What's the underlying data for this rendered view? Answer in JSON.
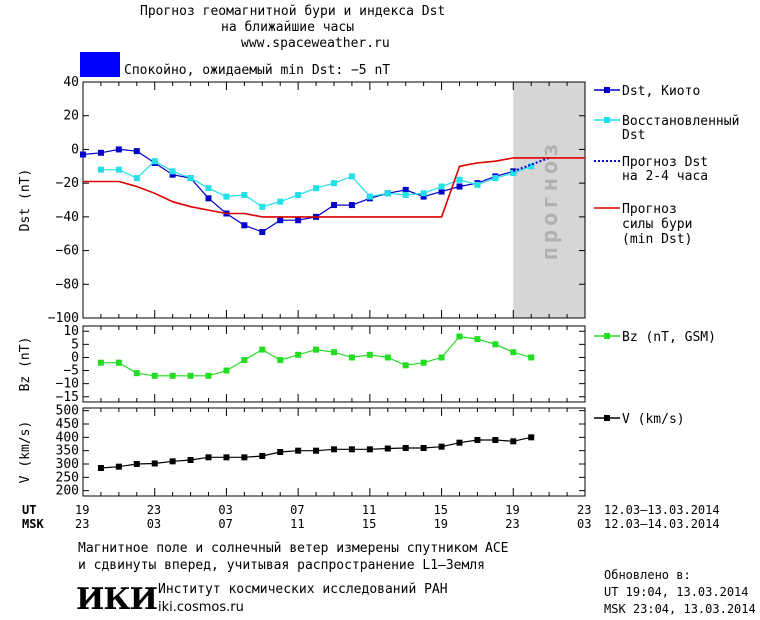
{
  "header": {
    "title_line1": "Прогноз геомагнитной бури и индекса Dst",
    "title_line2": "на ближайшие часы",
    "website": "www.spaceweather.ru",
    "status_color": "#0000ff",
    "status_text": "Спокойно, ожидаемый min Dst: −5 nT"
  },
  "forecast_band_label": "прогноз",
  "legend": {
    "dst_kyoto": "Dst, Киото",
    "restored_line1": "Восстановленный",
    "restored_line2": "Dst",
    "forecast_dst_line1": "Прогноз Dst",
    "forecast_dst_line2": "на 2-4 часа",
    "storm_line1": "Прогноз",
    "storm_line2": "силы бури",
    "storm_line3": "(min Dst)",
    "bz": "Bz (nT, GSM)",
    "v": "V (km/s)"
  },
  "time_axis": {
    "ut_label": "UT",
    "msk_label": "MSK",
    "ut_ticks": [
      "19",
      "23",
      "03",
      "07",
      "11",
      "15",
      "19",
      "23"
    ],
    "msk_ticks": [
      "23",
      "03",
      "07",
      "11",
      "15",
      "19",
      "23",
      "03"
    ],
    "ut_range": "12.03–13.03.2014",
    "msk_range": "12.03–14.03.2014"
  },
  "footer": {
    "note_line1": "Магнитное поле и солнечный ветер измерены спутником ACE",
    "note_line2": "и сдвинуты вперед, учитывая распространение L1–Земля",
    "logo_text": "ИКИ",
    "institute": "Институт космических исследований РАН",
    "institute_site": "iki.cosmos.ru",
    "updated_label": "Обновлено в:",
    "updated_ut": "UT  19:04, 13.03.2014",
    "updated_msk": "MSK 23:04, 13.03.2014"
  },
  "chart_data": [
    {
      "type": "line",
      "ylabel": "Dst (nT)",
      "ylim": [
        -100,
        40
      ],
      "yticks": [
        40,
        20,
        0,
        -20,
        -40,
        -60,
        -80,
        -100
      ],
      "x_hours_range": [
        0,
        28
      ],
      "forecast_region_hours": [
        24,
        28
      ],
      "series": [
        {
          "name": "Dst, Киото",
          "color": "#0000cc",
          "marker": "square",
          "x": [
            0,
            1,
            2,
            3,
            4,
            5,
            6,
            7,
            8,
            9,
            10,
            11,
            12,
            13,
            14,
            15,
            16,
            17,
            18,
            19,
            20,
            21,
            22,
            23,
            24
          ],
          "values": [
            -3,
            -2,
            0,
            -1,
            -8,
            -15,
            -17,
            -29,
            -38,
            -45,
            -49,
            -42,
            -42,
            -40,
            -33,
            -33,
            -29,
            -26,
            -24,
            -28,
            -25,
            -22,
            -20,
            -16,
            -13
          ]
        },
        {
          "name": "Восстановленный Dst",
          "color": "#22e0e8",
          "marker": "square",
          "x": [
            1,
            2,
            3,
            4,
            5,
            6,
            7,
            8,
            9,
            10,
            11,
            12,
            13,
            14,
            15,
            16,
            17,
            18,
            19,
            20,
            21,
            22,
            23,
            24,
            25
          ],
          "values": [
            -12,
            -12,
            -17,
            -7,
            -13,
            -17,
            -23,
            -28,
            -27,
            -34,
            -31,
            -27,
            -23,
            -20,
            -16,
            -28,
            -26,
            -27,
            -26,
            -22,
            -18,
            -21,
            -17,
            -14,
            -10
          ]
        },
        {
          "name": "Прогноз Dst на 2-4 часа",
          "color": "#0000cc",
          "style": "dotted",
          "x": [
            24,
            25,
            26
          ],
          "values": [
            -13,
            -9,
            -5
          ]
        },
        {
          "name": "Прогноз силы бури (min Dst)",
          "color": "#dd0000",
          "x": [
            0,
            1,
            2,
            3,
            4,
            5,
            6,
            7,
            8,
            9,
            10,
            11,
            12,
            13,
            14,
            15,
            16,
            17,
            18,
            19,
            20,
            21,
            22,
            23,
            24,
            25,
            26,
            27,
            28
          ],
          "values": [
            -19,
            -19,
            -19,
            -22,
            -26,
            -31,
            -34,
            -36,
            -38,
            -38,
            -40,
            -40,
            -40,
            -40,
            -40,
            -40,
            -40,
            -40,
            -40,
            -40,
            -40,
            -10,
            -8,
            -7,
            -5,
            -5,
            -5,
            -5,
            -5
          ]
        }
      ]
    },
    {
      "type": "line",
      "ylabel": "Bz (nT)",
      "ylim": [
        -17,
        12
      ],
      "yticks": [
        10,
        5,
        0,
        -5,
        -10,
        -15
      ],
      "series": [
        {
          "name": "Bz (nT, GSM)",
          "color": "#22dd22",
          "marker": "square",
          "x": [
            1,
            2,
            3,
            4,
            5,
            6,
            7,
            8,
            9,
            10,
            11,
            12,
            13,
            14,
            15,
            16,
            17,
            18,
            19,
            20,
            21,
            22,
            23,
            24,
            25
          ],
          "values": [
            -2,
            -2,
            -6,
            -7,
            -7,
            -7,
            -7,
            -5,
            -1,
            3,
            -1,
            1,
            3,
            2,
            0,
            1,
            0,
            -3,
            -2,
            0,
            8,
            7,
            5,
            2,
            0
          ]
        }
      ]
    },
    {
      "type": "line",
      "ylabel": "V (km/s)",
      "ylim": [
        180,
        510
      ],
      "yticks": [
        500,
        450,
        400,
        350,
        300,
        250,
        200
      ],
      "series": [
        {
          "name": "V (km/s)",
          "color": "#000000",
          "marker": "square",
          "x": [
            1,
            2,
            3,
            4,
            5,
            6,
            7,
            8,
            9,
            10,
            11,
            12,
            13,
            14,
            15,
            16,
            17,
            18,
            19,
            20,
            21,
            22,
            23,
            24,
            25
          ],
          "values": [
            285,
            290,
            300,
            302,
            310,
            315,
            325,
            325,
            325,
            330,
            345,
            350,
            350,
            355,
            355,
            355,
            358,
            360,
            360,
            365,
            380,
            390,
            390,
            385,
            400
          ]
        }
      ]
    }
  ]
}
